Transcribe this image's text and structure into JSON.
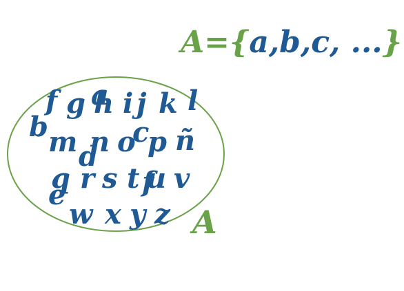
{
  "colors": {
    "accent_green": "#6aa24a",
    "letter_blue": "#1f5a94"
  },
  "notation": {
    "name": "A",
    "equals": "=",
    "open_brace": "{",
    "elements": "a,b,c, ...",
    "close_brace": "}"
  },
  "set_label": "A",
  "letters": [
    {
      "id": "f",
      "text": "f"
    },
    {
      "id": "g",
      "text": "g"
    },
    {
      "id": "a",
      "text": "a"
    },
    {
      "id": "h",
      "text": "h"
    },
    {
      "id": "i",
      "text": "i"
    },
    {
      "id": "j",
      "text": "j"
    },
    {
      "id": "k",
      "text": "k"
    },
    {
      "id": "l",
      "text": "l"
    },
    {
      "id": "b",
      "text": "b"
    },
    {
      "id": "m",
      "text": "m"
    },
    {
      "id": "n",
      "text": "n"
    },
    {
      "id": "c",
      "text": "c"
    },
    {
      "id": "o",
      "text": "o"
    },
    {
      "id": "p",
      "text": "p"
    },
    {
      "id": "enie",
      "text": "ñ"
    },
    {
      "id": "d",
      "text": "d"
    },
    {
      "id": "q",
      "text": "q"
    },
    {
      "id": "r",
      "text": "r"
    },
    {
      "id": "s",
      "text": "s"
    },
    {
      "id": "t",
      "text": "t"
    },
    {
      "id": "u",
      "text": "u"
    },
    {
      "id": "f2",
      "text": "f"
    },
    {
      "id": "v",
      "text": "v"
    },
    {
      "id": "e",
      "text": "e"
    },
    {
      "id": "w",
      "text": "w"
    },
    {
      "id": "x",
      "text": "x"
    },
    {
      "id": "y",
      "text": "y"
    },
    {
      "id": "z",
      "text": "z"
    }
  ]
}
